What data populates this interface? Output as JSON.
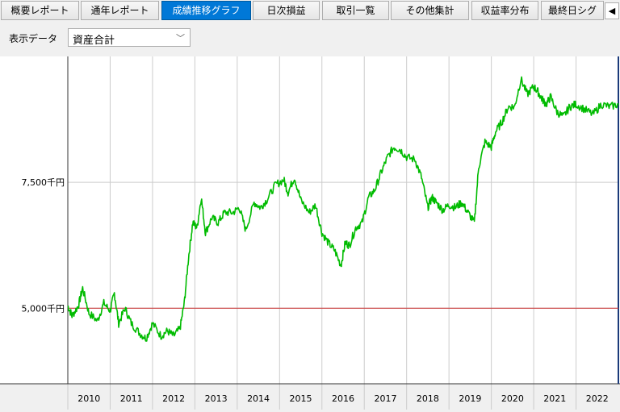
{
  "tabs": [
    {
      "label": "概要レポート",
      "active": false
    },
    {
      "label": "通年レポート",
      "active": false
    },
    {
      "label": "成績推移グラフ",
      "active": true
    },
    {
      "label": "日次損益",
      "active": false
    },
    {
      "label": "取引一覧",
      "active": false
    },
    {
      "label": "その他集計",
      "active": false
    },
    {
      "label": "収益率分布",
      "active": false
    },
    {
      "label": "最終日シグ",
      "active": false
    }
  ],
  "tab_scroll_icon": "left-arrow-icon",
  "toolbar": {
    "label": "表示データ",
    "selected": "資産合計",
    "chevron_icon": "chevron-down-icon"
  },
  "colors": {
    "line": "#00bb00",
    "baseline": "#cc4444",
    "grid": "#cccccc",
    "axis": "#333333",
    "active_tab": "#0078d7"
  },
  "chart_data": {
    "type": "line",
    "title": "",
    "xlabel": "",
    "ylabel": "",
    "y_ticks": [
      {
        "value": 5000,
        "label": "5,000千円"
      },
      {
        "value": 7500,
        "label": "7,500千円"
      }
    ],
    "baseline": 5000,
    "x_ticks": [
      "2010",
      "2011",
      "2012",
      "2013",
      "2014",
      "2015",
      "2016",
      "2017",
      "2018",
      "2019",
      "2020",
      "2021",
      "2022"
    ],
    "xlim": [
      2010.0,
      2023.0
    ],
    "ylim": [
      3500,
      10000
    ],
    "grid": true,
    "series": [
      {
        "x": [
          2010.0,
          2010.1,
          2010.25,
          2010.35,
          2010.5,
          2010.7,
          2010.85,
          2011.0,
          2011.1,
          2011.2,
          2011.35,
          2011.5,
          2011.7,
          2011.85,
          2012.0,
          2012.2,
          2012.35,
          2012.5,
          2012.65,
          2012.75,
          2012.85,
          2012.95,
          2013.05,
          2013.15,
          2013.25,
          2013.4,
          2013.55,
          2013.7,
          2013.9,
          2014.05,
          2014.2,
          2014.4,
          2014.55,
          2014.7,
          2014.9,
          2015.1,
          2015.2,
          2015.35,
          2015.5,
          2015.7,
          2015.85,
          2016.0,
          2016.15,
          2016.3,
          2016.45,
          2016.55,
          2016.65,
          2016.8,
          2016.95,
          2017.1,
          2017.25,
          2017.4,
          2017.55,
          2017.7,
          2017.85,
          2018.0,
          2018.2,
          2018.35,
          2018.5,
          2018.6,
          2018.7,
          2018.85,
          2019.0,
          2019.15,
          2019.3,
          2019.45,
          2019.6,
          2019.7,
          2019.85,
          2020.0,
          2020.1,
          2020.25,
          2020.4,
          2020.55,
          2020.7,
          2020.85,
          2021.0,
          2021.1,
          2021.2,
          2021.3,
          2021.4,
          2021.55,
          2021.7,
          2021.85,
          2022.0,
          2022.2,
          2022.4,
          2022.6,
          2022.8,
          2023.0
        ],
        "y": [
          5050,
          4850,
          5050,
          5400,
          4900,
          4750,
          5100,
          4950,
          5300,
          4700,
          5000,
          4700,
          4500,
          4400,
          4700,
          4450,
          4550,
          4450,
          4600,
          5100,
          6000,
          6700,
          6600,
          7200,
          6500,
          6800,
          6700,
          6900,
          6900,
          7000,
          6550,
          7100,
          7000,
          7150,
          7450,
          7550,
          7300,
          7600,
          7150,
          6900,
          7050,
          6500,
          6300,
          6150,
          5850,
          6300,
          6250,
          6600,
          6700,
          7200,
          7350,
          7700,
          8000,
          8200,
          8150,
          8000,
          7950,
          7600,
          7000,
          7200,
          7100,
          6950,
          7050,
          7000,
          7100,
          6900,
          6700,
          7800,
          8300,
          8200,
          8500,
          8700,
          9000,
          9000,
          9550,
          9250,
          9400,
          9300,
          9150,
          9050,
          9200,
          8900,
          8800,
          9000,
          9050,
          8950,
          8850,
          9050,
          9000,
          9050
        ]
      }
    ]
  }
}
